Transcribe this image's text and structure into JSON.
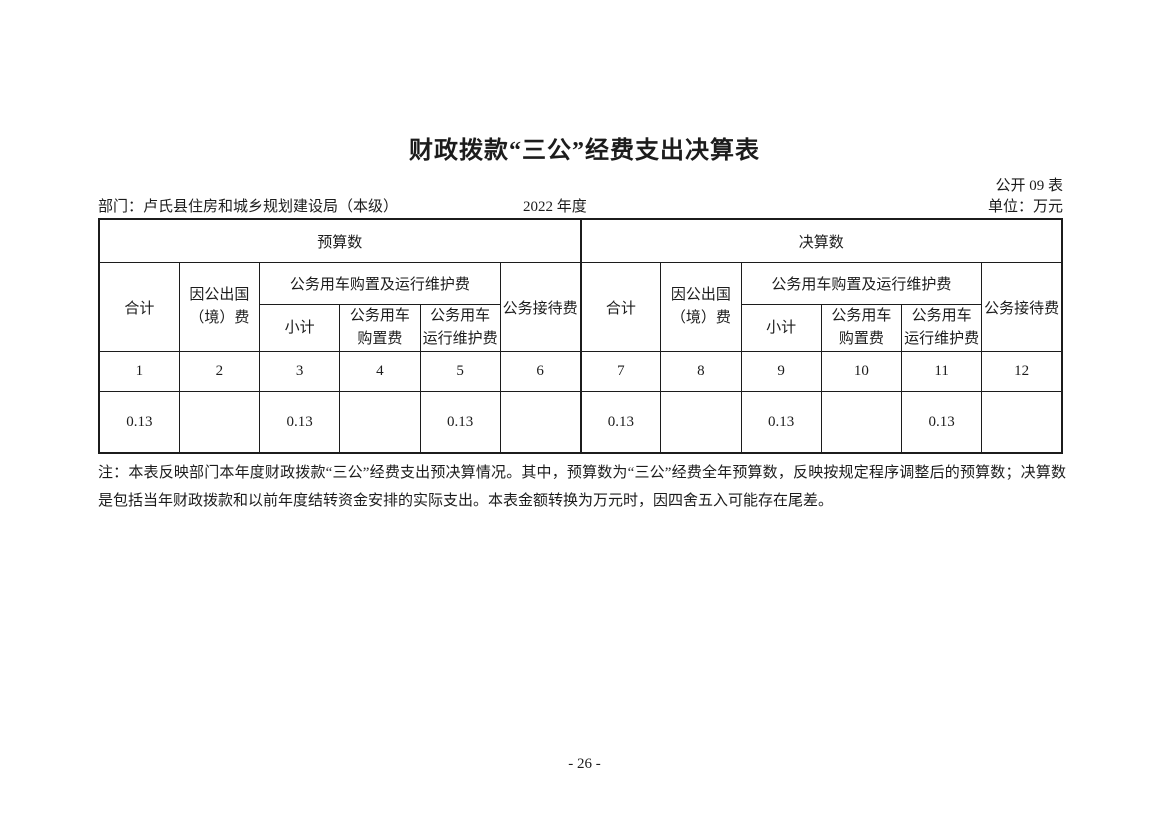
{
  "page": {
    "title": "财政拨款“三公”经费支出决算表",
    "table_code": "公开 09 表",
    "department": "部门：卢氏县住房和城乡规划建设局（本级）",
    "year": "2022 年度",
    "unit": "单位：万元",
    "page_number": "- 26 -"
  },
  "table": {
    "section_headers": {
      "budget": "预算数",
      "final": "决算数"
    },
    "headers": {
      "total": "合计",
      "abroad": "因公出国\n（境）费",
      "vehicle_group": "公务用车购置及运行维护费",
      "subtotal": "小计",
      "purchase": "公务用车\n购置费",
      "maintenance": "公务用车\n运行维护费",
      "reception": "公务接待费"
    },
    "column_numbers": [
      "1",
      "2",
      "3",
      "4",
      "5",
      "6",
      "7",
      "8",
      "9",
      "10",
      "11",
      "12"
    ],
    "values": [
      "0.13",
      "",
      "0.13",
      "",
      "0.13",
      "",
      "0.13",
      "",
      "0.13",
      "",
      "0.13",
      ""
    ]
  },
  "note": "注：本表反映部门本年度财政拨款“三公”经费支出预决算情况。其中，预算数为“三公”经费全年预算数，反映按规定程序调整后的预算数；决算数是包括当年财政拨款和以前年度结转资金安排的实际支出。本表金额转换为万元时，因四舍五入可能存在尾差。"
}
